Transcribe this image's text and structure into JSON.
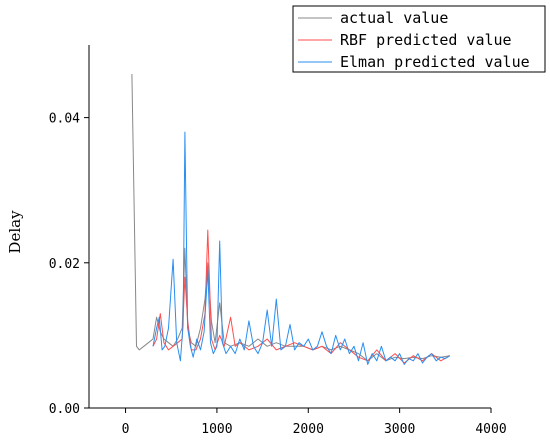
{
  "chart_data": {
    "type": "line",
    "title": "",
    "xlabel": "",
    "ylabel": "Delay",
    "xlim": [
      -400,
      4000
    ],
    "ylim": [
      0,
      0.05
    ],
    "xticks": [
      0,
      1000,
      2000,
      3000,
      4000
    ],
    "yticks": [
      0.0,
      0.02,
      0.04
    ],
    "ytick_labels": [
      "0.00",
      "0.02",
      "0.04"
    ],
    "grid": false,
    "legend_position": "top-right",
    "series": [
      {
        "name": "actual value",
        "color": "#888888",
        "x": [
          70,
          120,
          150,
          200,
          250,
          300,
          340,
          380,
          420,
          470,
          520,
          570,
          620,
          650,
          680,
          720,
          770,
          820,
          870,
          900,
          940,
          980,
          1030,
          1080,
          1150,
          1250,
          1350,
          1450,
          1550,
          1650,
          1750,
          1850,
          1950,
          2050,
          2150,
          2250,
          2350,
          2450,
          2550,
          2650,
          2750,
          2850,
          2950,
          3050,
          3150,
          3250,
          3350,
          3450,
          3550
        ],
        "y": [
          0.046,
          0.0085,
          0.008,
          0.0085,
          0.009,
          0.0095,
          0.0125,
          0.0105,
          0.0095,
          0.009,
          0.0085,
          0.0095,
          0.011,
          0.022,
          0.011,
          0.009,
          0.0085,
          0.011,
          0.015,
          0.02,
          0.012,
          0.009,
          0.0145,
          0.009,
          0.0085,
          0.009,
          0.0085,
          0.0095,
          0.0085,
          0.009,
          0.0085,
          0.0085,
          0.0085,
          0.008,
          0.0085,
          0.008,
          0.0085,
          0.008,
          0.0075,
          0.0065,
          0.0075,
          0.0065,
          0.007,
          0.0068,
          0.007,
          0.0068,
          0.0072,
          0.007,
          0.0072
        ]
      },
      {
        "name": "RBF predicted value",
        "color": "#ff4d4d",
        "x": [
          300,
          340,
          380,
          420,
          470,
          520,
          570,
          620,
          650,
          680,
          720,
          770,
          820,
          870,
          900,
          940,
          980,
          1030,
          1080,
          1150,
          1200,
          1250,
          1350,
          1450,
          1550,
          1650,
          1750,
          1850,
          1950,
          2050,
          2150,
          2250,
          2350,
          2450,
          2550,
          2650,
          2750,
          2850,
          2950,
          3050,
          3150,
          3250,
          3350,
          3450,
          3550
        ],
        "y": [
          0.0085,
          0.0095,
          0.013,
          0.009,
          0.008,
          0.0085,
          0.009,
          0.0095,
          0.018,
          0.012,
          0.008,
          0.008,
          0.0095,
          0.013,
          0.0245,
          0.0095,
          0.008,
          0.01,
          0.0085,
          0.0125,
          0.0085,
          0.009,
          0.008,
          0.0085,
          0.0095,
          0.008,
          0.0085,
          0.009,
          0.0085,
          0.008,
          0.0085,
          0.0075,
          0.009,
          0.008,
          0.007,
          0.0065,
          0.008,
          0.0065,
          0.0075,
          0.0062,
          0.0072,
          0.0065,
          0.0075,
          0.0065,
          0.0072
        ]
      },
      {
        "name": "Elman predicted value",
        "color": "#2a8ff0",
        "x": [
          300,
          340,
          370,
          400,
          430,
          470,
          520,
          560,
          600,
          630,
          650,
          680,
          710,
          740,
          780,
          820,
          860,
          900,
          930,
          960,
          1000,
          1030,
          1060,
          1100,
          1150,
          1200,
          1250,
          1300,
          1350,
          1400,
          1450,
          1500,
          1550,
          1600,
          1650,
          1700,
          1750,
          1800,
          1850,
          1900,
          1950,
          2000,
          2050,
          2100,
          2150,
          2200,
          2250,
          2300,
          2350,
          2400,
          2450,
          2500,
          2550,
          2600,
          2650,
          2700,
          2750,
          2800,
          2850,
          2900,
          2950,
          3000,
          3050,
          3100,
          3150,
          3200,
          3250,
          3300,
          3350,
          3400,
          3450,
          3500,
          3550
        ],
        "y": [
          0.0085,
          0.011,
          0.0125,
          0.008,
          0.0085,
          0.011,
          0.0205,
          0.009,
          0.0065,
          0.0115,
          0.038,
          0.011,
          0.0085,
          0.007,
          0.0095,
          0.008,
          0.0105,
          0.019,
          0.009,
          0.0075,
          0.0085,
          0.023,
          0.009,
          0.0075,
          0.0085,
          0.0075,
          0.0095,
          0.008,
          0.012,
          0.0085,
          0.0075,
          0.009,
          0.0135,
          0.0085,
          0.015,
          0.008,
          0.0085,
          0.0115,
          0.008,
          0.009,
          0.0085,
          0.0095,
          0.008,
          0.0085,
          0.0105,
          0.0085,
          0.0075,
          0.01,
          0.008,
          0.0095,
          0.0075,
          0.0085,
          0.0065,
          0.009,
          0.006,
          0.0075,
          0.0065,
          0.0085,
          0.0065,
          0.007,
          0.0065,
          0.0075,
          0.006,
          0.0068,
          0.0065,
          0.0075,
          0.0062,
          0.007,
          0.0075,
          0.0065,
          0.007,
          0.0068,
          0.0072
        ]
      }
    ]
  }
}
